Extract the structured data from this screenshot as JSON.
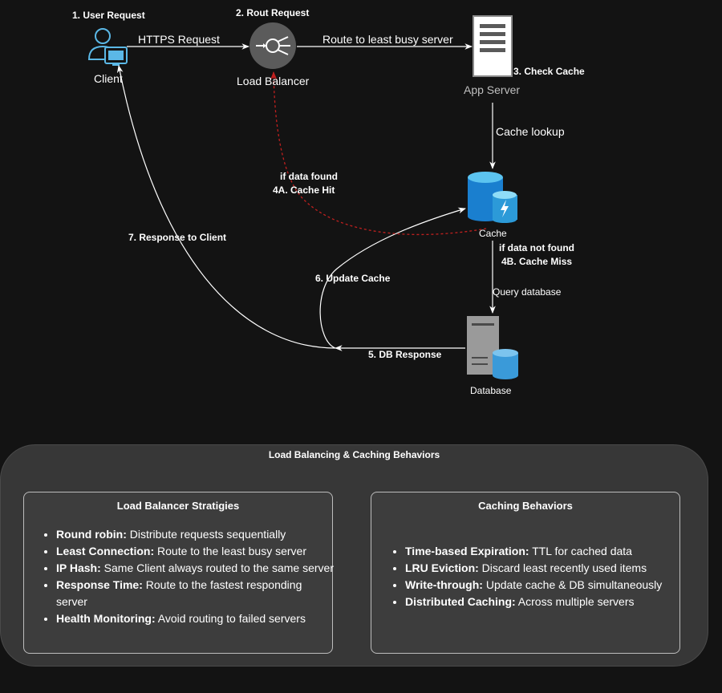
{
  "nodes": {
    "client": "Client",
    "load_balancer": "Load Balancer",
    "app_server": "App Server",
    "cache": "Cache",
    "database": "Database"
  },
  "steps": {
    "s1": "1. User Request",
    "s2": "2. Rout Request",
    "s3": "3. Check Cache",
    "s4a_line1": "if data found",
    "s4a_line2": "4A. Cache Hit",
    "s4b_line1": "if data not found",
    "s4b_line2": "4B. Cache Miss",
    "s5": "5. DB Response",
    "s6": "6. Update Cache",
    "s7": "7. Response to Client"
  },
  "edges": {
    "https": "HTTPS Request",
    "route": "Route to least busy server",
    "cache_lookup": "Cache lookup",
    "query_db": "Query database"
  },
  "panel": {
    "title": "Load Balancing & Caching Behaviors",
    "lb": {
      "title": "Load Balancer Stratigies",
      "items": [
        {
          "term": "Round robin:",
          "desc": " Distribute requests sequentially"
        },
        {
          "term": "Least Connection:",
          "desc": " Route to the least busy server"
        },
        {
          "term": "IP Hash:",
          "desc": " Same Client always routed to the same server"
        },
        {
          "term": "Response Time:",
          "desc": " Route to the fastest responding server"
        },
        {
          "term": "Health Monitoring:",
          "desc": " Avoid routing to failed servers"
        }
      ]
    },
    "cache": {
      "title": "Caching Behaviors",
      "items": [
        {
          "term": "Time-based Expiration:",
          "desc": " TTL for cached data"
        },
        {
          "term": "LRU Eviction:",
          "desc": " Discard least recently used items"
        },
        {
          "term": "Write-through:",
          "desc": " Update cache & DB simultaneously"
        },
        {
          "term": "Distributed Caching:",
          "desc": " Across multiple servers"
        }
      ]
    }
  },
  "colors": {
    "background": "#131313",
    "client_icon": "#5bb8e6",
    "cache_hit_arrow": "#c0201f",
    "cache_blue": "#1a7fcf",
    "db_blue": "#3a9ad9",
    "server_gray": "#9a9a9a"
  }
}
